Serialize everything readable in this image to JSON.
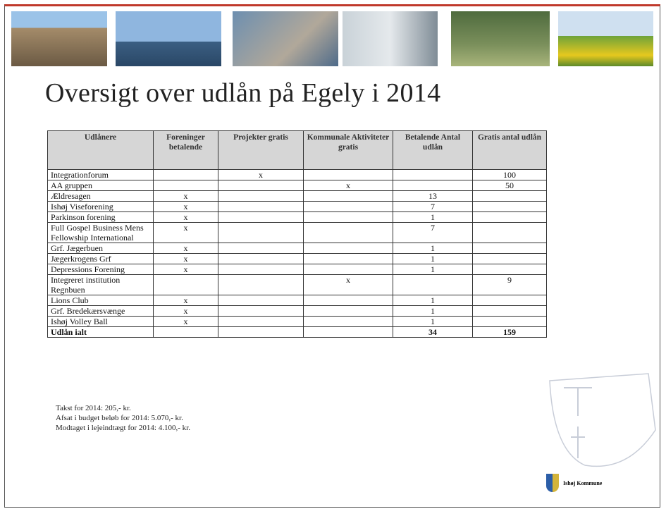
{
  "header": {
    "title": "Oversigt over udlån på Egely i 2014"
  },
  "table": {
    "columns": [
      "Udlånere",
      "Foreninger betalende",
      "Projekter gratis",
      "Kommunale Aktiviteter gratis",
      "Betalende Antal udlån",
      "Gratis antal udlån"
    ],
    "rows": [
      [
        "Integrationforum",
        null,
        "x",
        null,
        null,
        100
      ],
      [
        "AA gruppen",
        null,
        null,
        "x",
        null,
        50
      ],
      [
        "Ældresagen",
        "x",
        null,
        null,
        13,
        null
      ],
      [
        "Ishøj Viseforening",
        "x",
        null,
        null,
        7,
        null
      ],
      [
        "Parkinson forening",
        "x",
        null,
        null,
        1,
        null
      ],
      [
        "Full Gospel Business Mens Fellowship International",
        "x",
        null,
        null,
        7,
        null
      ],
      [
        "Grf. Jægerbuen",
        "x",
        null,
        null,
        1,
        null
      ],
      [
        "Jægerkrogens Grf",
        "x",
        null,
        null,
        1,
        null
      ],
      [
        "Depressions Forening",
        "x",
        null,
        null,
        1,
        null
      ],
      [
        "Integreret institution Regnbuen",
        null,
        null,
        "x",
        null,
        9
      ],
      [
        "Lions Club",
        "x",
        null,
        null,
        1,
        null
      ],
      [
        "Grf. Bredekærsvænge",
        "x",
        null,
        null,
        1,
        null
      ],
      [
        "Ishøj Volley Ball",
        "x",
        null,
        null,
        1,
        null
      ]
    ],
    "total": [
      "Udlån ialt",
      null,
      null,
      null,
      34,
      159
    ]
  },
  "notes": [
    "Takst for 2014: 205,- kr.",
    "Afsat i budget beløb for 2014:  5.070,- kr.",
    "Modtaget i lejeindtægt for 2014: 4.100,- kr."
  ],
  "logo": {
    "label": "Ishøj Kommune"
  }
}
